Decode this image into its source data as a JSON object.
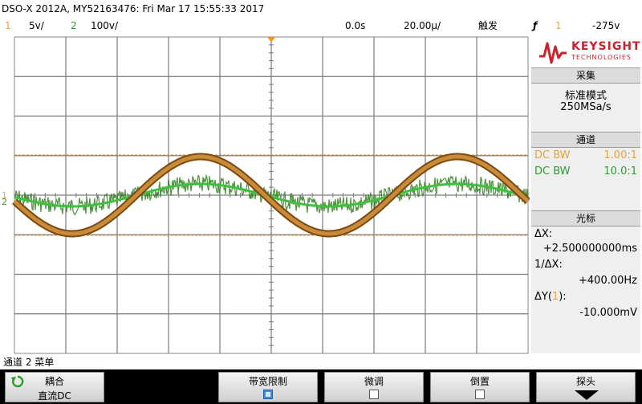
{
  "title": "DSO-X 2012A, MY52163476: Fri Mar 17 15:55:33 2017",
  "status": {
    "ch1_num": "1",
    "ch1_scale": "5ⅴ/",
    "ch2_num": "2",
    "ch2_scale": "100ⅴ/",
    "time_delay": "0.0s",
    "time_scale": "20.00µ/",
    "trigger_label": "触发",
    "trigger_edge": "ƒ",
    "trigger_source": "1",
    "trigger_level": "-275ⅴ"
  },
  "logo": {
    "brand": "KEYSIGHT",
    "sub": "TECHNOLOGIES"
  },
  "acquire": {
    "header": "采集",
    "mode": "标准模式",
    "rate": "250MSa/s"
  },
  "channels": {
    "header": "通道",
    "ch1_coupling": "DC BW",
    "ch1_probe": "1.00:1",
    "ch2_coupling": "DC BW",
    "ch2_probe": "10.0:1"
  },
  "cursors": {
    "header": "光标",
    "dx_label": "ΔX:",
    "dx_value": "+2.500000000ms",
    "inv_label": "1/ΔX:",
    "inv_value": "+400.00Hz",
    "dy_label_prefix": "ΔY(",
    "dy_label_ch": "1",
    "dy_label_suffix": "):",
    "dy_value": "-10.000mV"
  },
  "menu": {
    "title": "通道 2 菜单",
    "coupling_label": "耦合",
    "coupling_value": "直流DC",
    "bw_limit_label": "带宽限制",
    "fine_label": "微调",
    "invert_label": "倒置",
    "probe_label": "探头"
  },
  "colors": {
    "ch1": "#b8752a",
    "ch2": "#2e8b2e",
    "grid": "#9a9a9a",
    "accent": "#e05a1a"
  }
}
